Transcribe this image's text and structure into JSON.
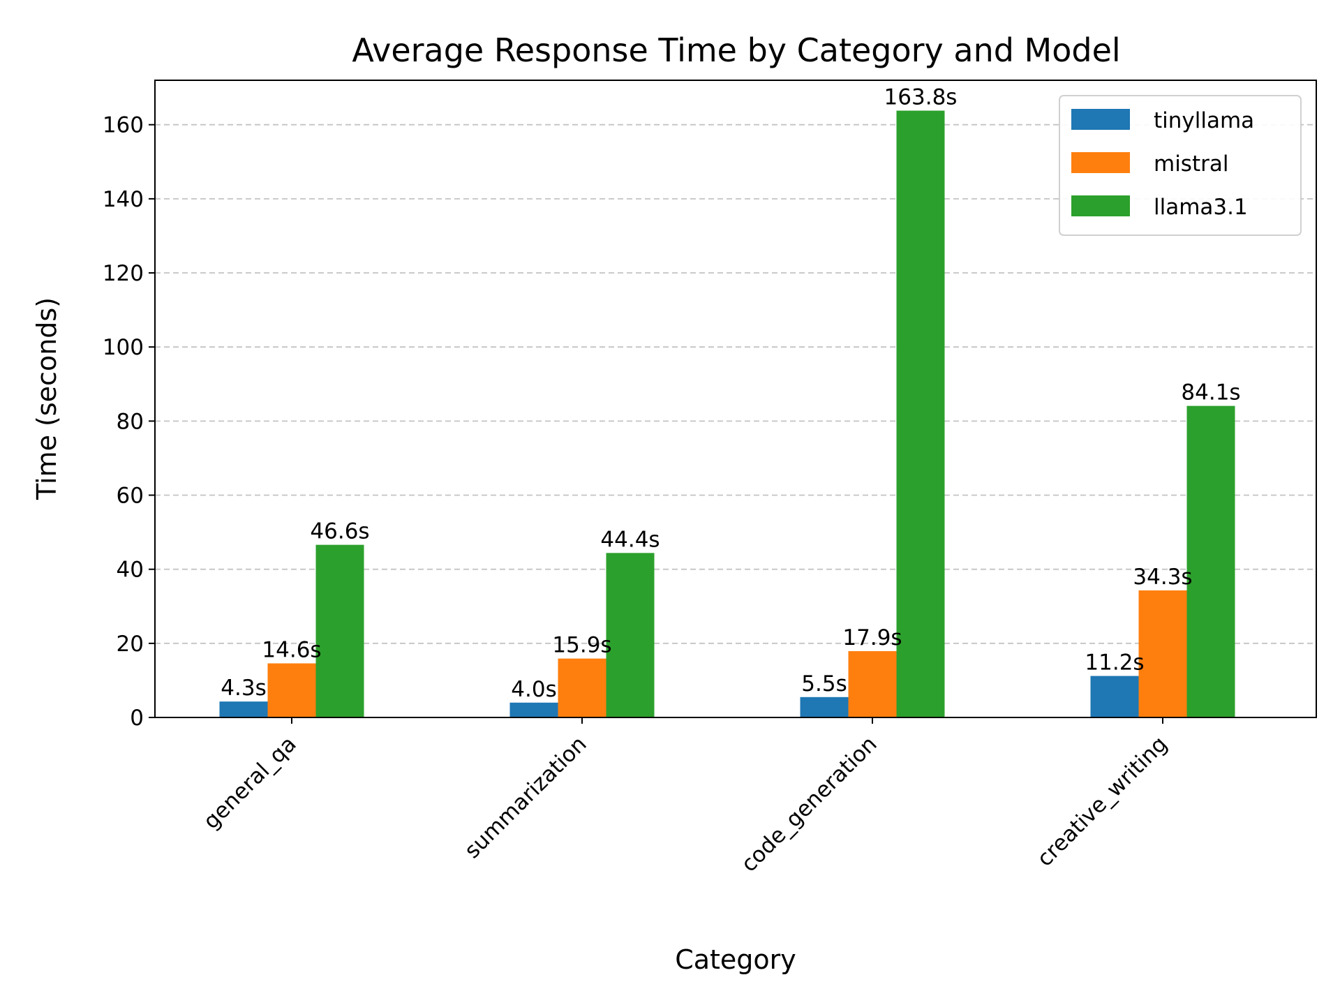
{
  "chart_data": {
    "type": "bar",
    "title": "Average Response Time by Category and Model",
    "xlabel": "Category",
    "ylabel": "Time (seconds)",
    "categories": [
      "general_qa",
      "summarization",
      "code_generation",
      "creative_writing"
    ],
    "series": [
      {
        "name": "tinyllama",
        "color": "#1f77b4",
        "values": [
          4.3,
          4.0,
          5.5,
          11.2
        ]
      },
      {
        "name": "mistral",
        "color": "#ff7f0e",
        "values": [
          14.6,
          15.9,
          17.9,
          34.3
        ]
      },
      {
        "name": "llama3.1",
        "color": "#2ca02c",
        "values": [
          46.6,
          44.4,
          163.8,
          84.1
        ]
      }
    ],
    "data_labels": [
      [
        "4.3s",
        "4.0s",
        "5.5s",
        "11.2s"
      ],
      [
        "14.6s",
        "15.9s",
        "17.9s",
        "34.3s"
      ],
      [
        "46.6s",
        "44.4s",
        "163.8s",
        "84.1s"
      ]
    ],
    "yticks": [
      "0",
      "20",
      "40",
      "60",
      "80",
      "100",
      "120",
      "140",
      "160"
    ],
    "ylim": [
      0,
      172
    ],
    "grid": "y-dashed",
    "legend_position": "top-right"
  }
}
